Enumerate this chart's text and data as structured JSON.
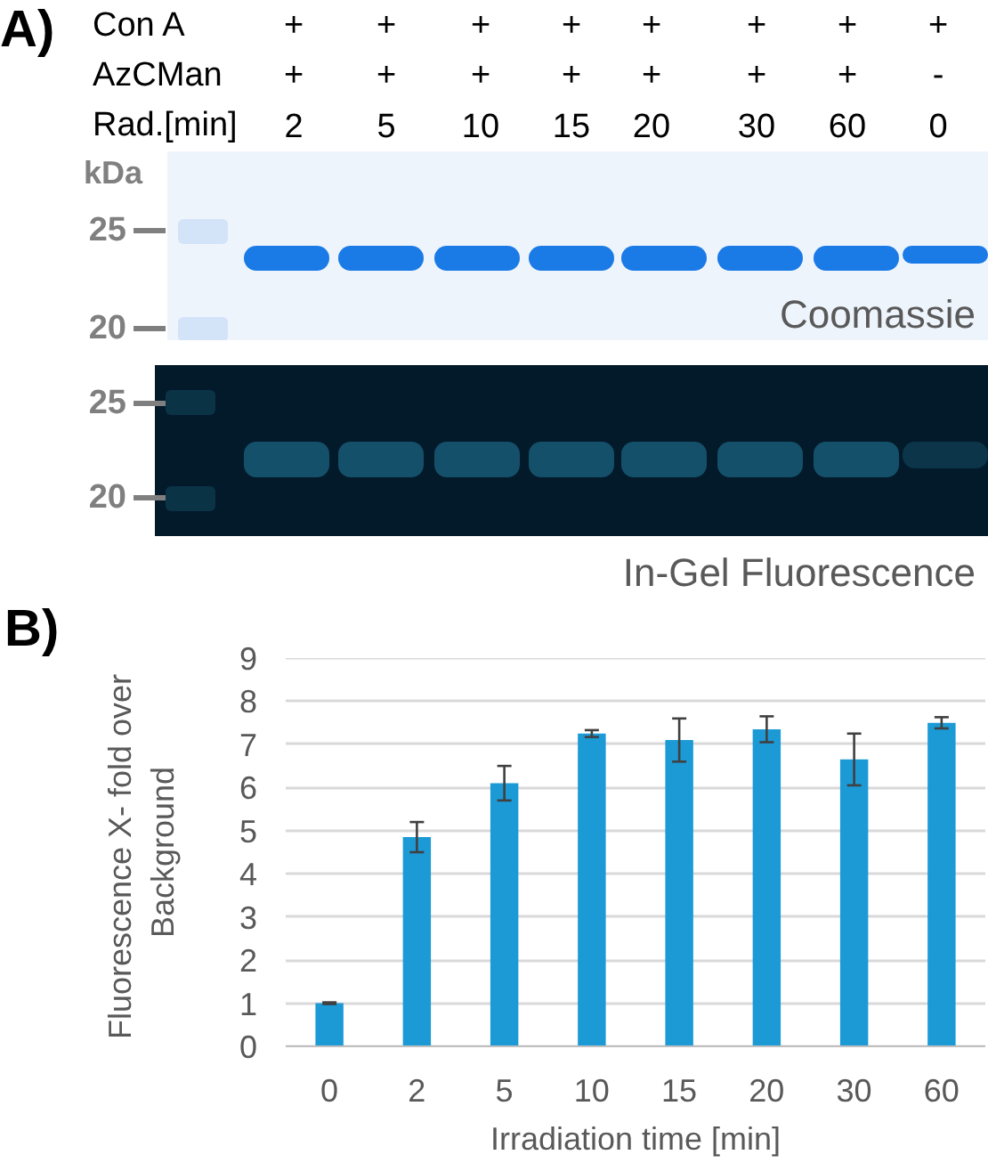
{
  "chart_data": [
    {
      "type": "heatmap",
      "title": "A)",
      "y_categories": [
        "Con A",
        "AzCMan"
      ],
      "cells": [
        [
          null,
          null,
          null,
          null,
          null,
          null,
          null,
          null
        ],
        [
          null,
          null,
          null,
          null,
          null,
          null,
          null,
          null
        ]
      ],
      "cell_labels": [
        [
          "+",
          "+",
          "+",
          "+",
          "+",
          "+",
          "+",
          "+"
        ],
        [
          "+",
          "+",
          "+",
          "+",
          "+",
          "+",
          "+",
          "-"
        ]
      ],
      "xlabel": "Rad.[min]",
      "categories": [
        "2",
        "5",
        "10",
        "15",
        "20",
        "30",
        "60",
        "0"
      ]
    },
    {
      "type": "other",
      "ylabel": "kDa",
      "y_categories": [
        "25",
        "20"
      ],
      "annotations": [
        "Coomassie"
      ]
    },
    {
      "type": "other",
      "y_categories": [
        "25",
        "20"
      ],
      "annotations": [
        "In-Gel Fluorescence"
      ]
    },
    {
      "type": "bar",
      "title": "B)",
      "categories": [
        "0",
        "2",
        "5",
        "10",
        "15",
        "20",
        "30",
        "60"
      ],
      "values": [
        1.0,
        4.85,
        6.1,
        7.25,
        7.1,
        7.35,
        6.65,
        7.5
      ],
      "errors": [
        0.02,
        0.35,
        0.4,
        0.08,
        0.5,
        0.3,
        0.6,
        0.13
      ],
      "color": "#1b9ad6",
      "ylim": [
        0,
        9
      ],
      "yticks": [
        0,
        1,
        2,
        3,
        4,
        5,
        6,
        7,
        8,
        9
      ],
      "grid": "y",
      "xlabel": "Irradiation time [min]",
      "ylabel": "Fluorescence  X- fold over\nBackground"
    }
  ]
}
